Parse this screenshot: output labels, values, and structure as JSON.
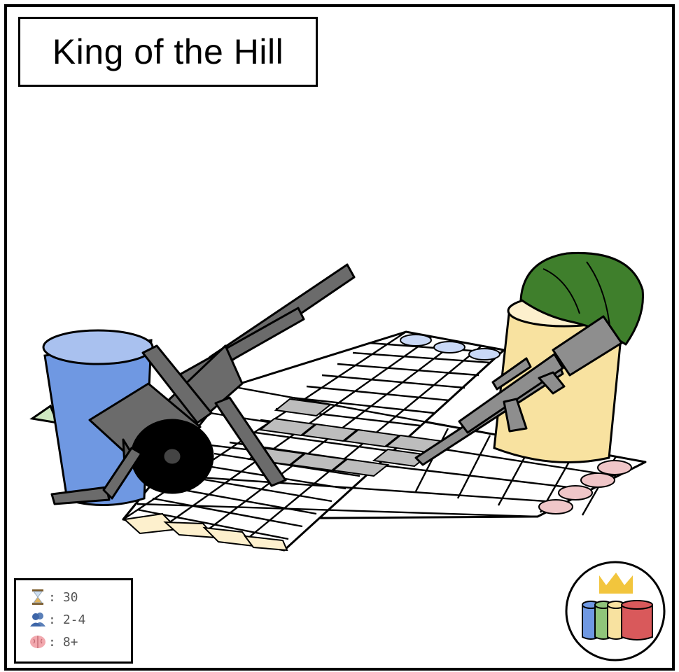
{
  "title": "King of the Hill",
  "stats": {
    "time": {
      "icon": "hourglass-icon",
      "value": "30"
    },
    "players": {
      "icon": "people-icon",
      "value": "2-4"
    },
    "age": {
      "icon": "brain-icon",
      "value": "8+"
    }
  },
  "stat_separator": ":",
  "colors": {
    "blue": "#6f98e2",
    "blue_light": "#c9d8f6",
    "green": "#8fc47a",
    "green_light": "#cfe8c2",
    "yellow": "#f8e2a0",
    "yellow_light": "#fdf0cd",
    "red": "#d9595b",
    "red_light": "#f0c6c8",
    "gray_cell": "#bdbdbd",
    "cannon_gray": "#6b6b6b",
    "rifle_gray": "#8e8e8e",
    "helmet_green": "#3f7f2c",
    "crown_gold": "#f2c53d"
  }
}
